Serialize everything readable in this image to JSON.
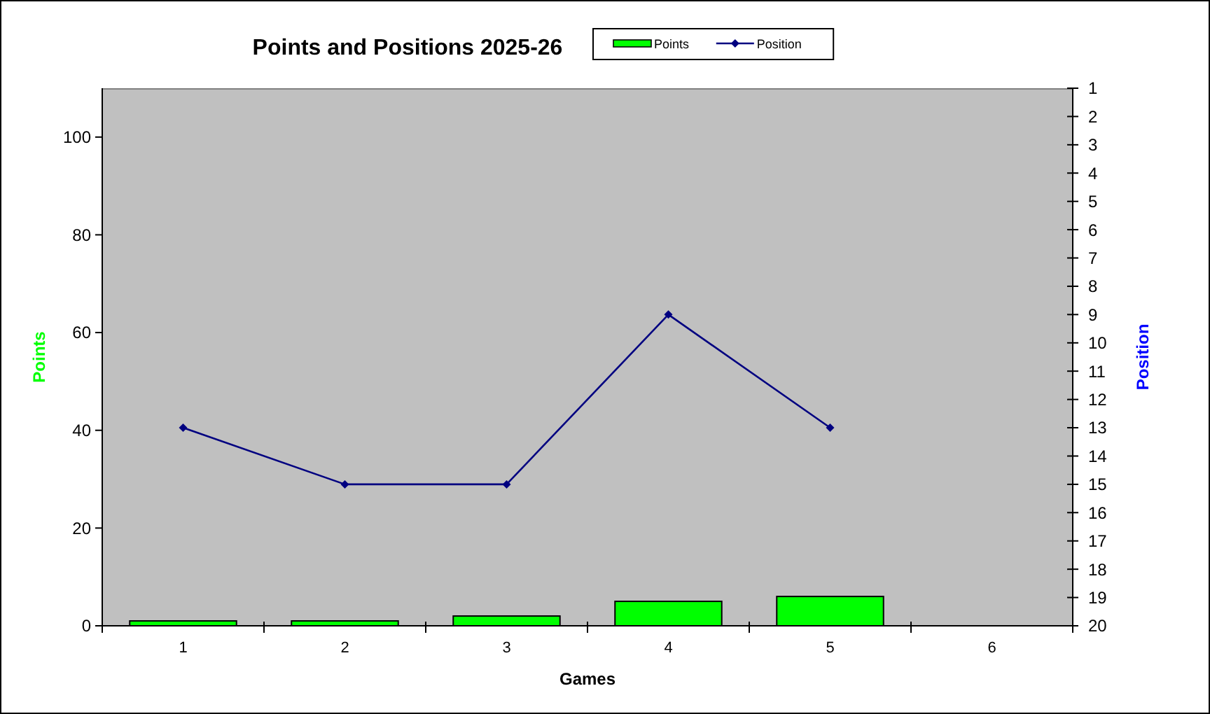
{
  "chart_data": {
    "type": "bar",
    "title": "Points and Positions 2025-26",
    "xlabel": "Games",
    "ylabel": "Points",
    "y2label": "Position",
    "categories": [
      "1",
      "2",
      "3",
      "4",
      "5",
      "6"
    ],
    "series": [
      {
        "name": "Points",
        "color": "#00ff00",
        "values": [
          1,
          1,
          2,
          5,
          6,
          null
        ]
      },
      {
        "name": "Position",
        "type": "line",
        "axis": "y2",
        "color": "#000080",
        "values": [
          13,
          15,
          15,
          9,
          13,
          null
        ]
      }
    ],
    "ylim": [
      0,
      110
    ],
    "yticks": [
      0,
      20,
      40,
      60,
      80,
      100
    ],
    "y2lim": [
      20,
      1
    ],
    "y2ticks": [
      1,
      2,
      3,
      4,
      5,
      6,
      7,
      8,
      9,
      10,
      11,
      12,
      13,
      14,
      15,
      16,
      17,
      18,
      19,
      20
    ],
    "legend": "top",
    "marker": "diamond"
  }
}
